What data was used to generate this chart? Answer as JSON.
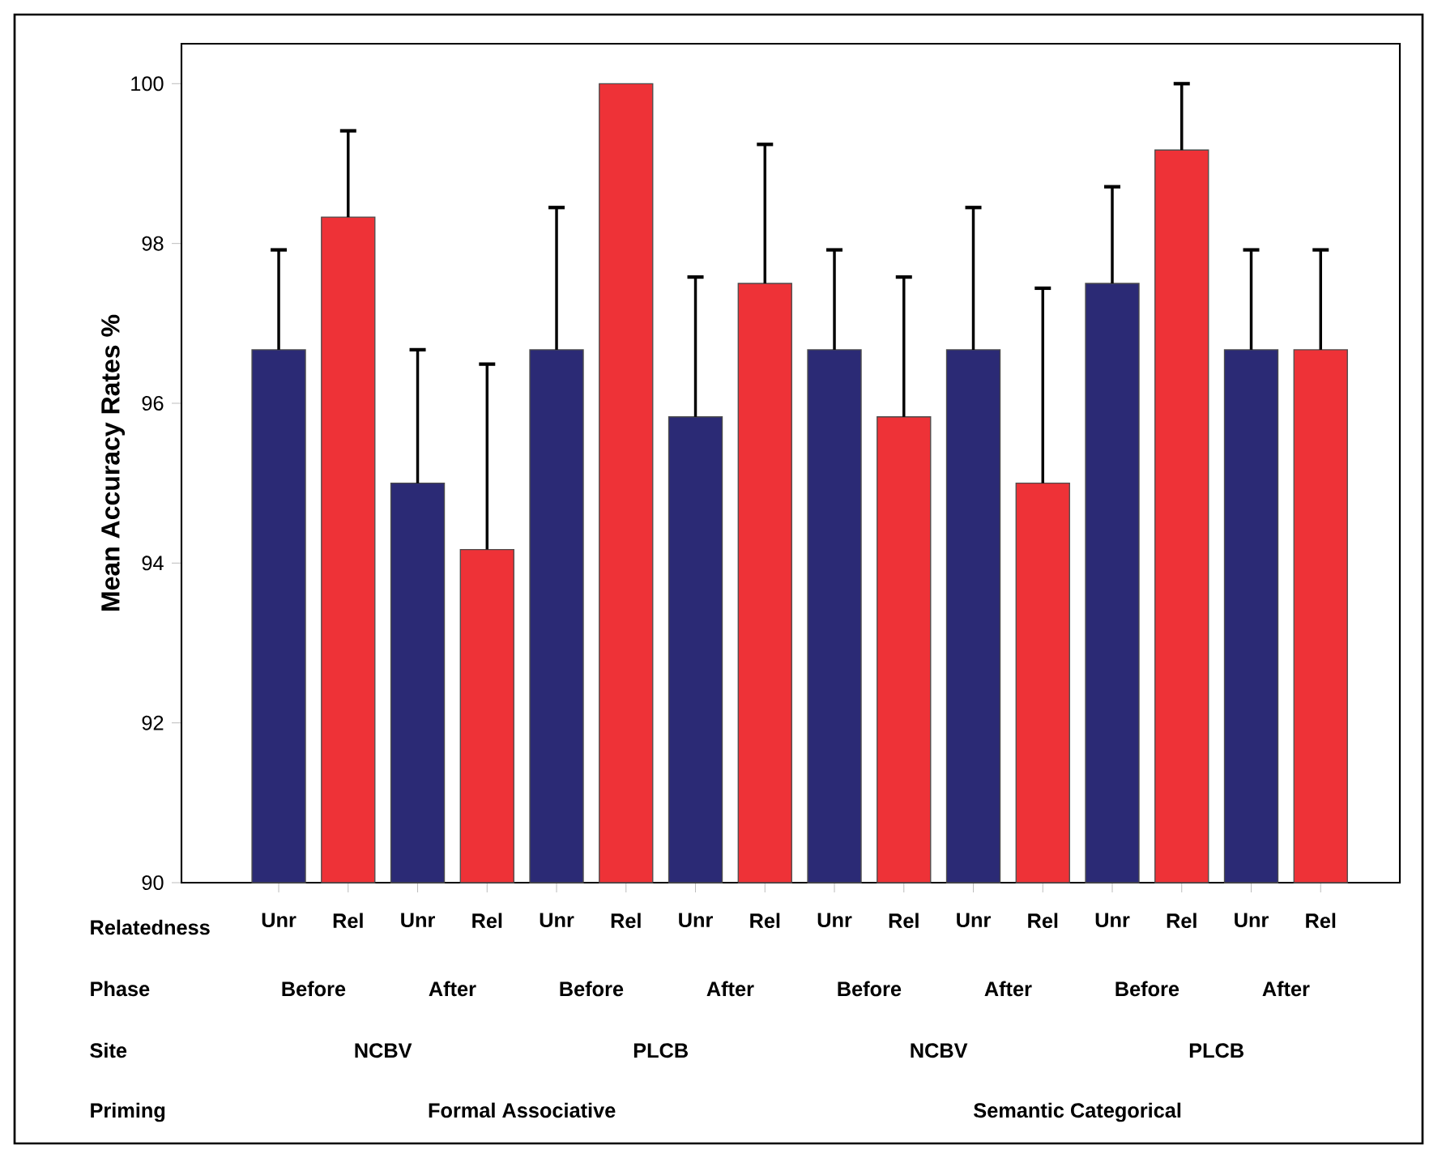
{
  "chart_data": {
    "type": "bar",
    "ylabel": "Mean Accuracy Rates  %",
    "categories": [
      "Unr",
      "Rel",
      "Unr",
      "Rel",
      "Unr",
      "Rel",
      "Unr",
      "Rel",
      "Unr",
      "Rel",
      "Unr",
      "Rel",
      "Unr",
      "Rel",
      "Unr",
      "Rel"
    ],
    "values": [
      96.67,
      98.33,
      95,
      94.17,
      96.67,
      100,
      95.83,
      97.5,
      96.67,
      95.83,
      96.67,
      95,
      97.5,
      99.17,
      96.67,
      96.67
    ],
    "colors": [
      "#2b2a75",
      "#ee3237",
      "#2b2a75",
      "#ee3237",
      "#2b2a75",
      "#ee3237",
      "#2b2a75",
      "#ee3237",
      "#2b2a75",
      "#ee3237",
      "#2b2a75",
      "#ee3237",
      "#2b2a75",
      "#ee3237",
      "#2b2a75",
      "#ee3237"
    ],
    "errors": [
      [
        96.67,
        97.92
      ],
      [
        98.33,
        99.41
      ],
      [
        95,
        96.67
      ],
      [
        94.17,
        96.49
      ],
      [
        96.67,
        98.45
      ],
      null,
      [
        95.83,
        97.58
      ],
      [
        97.5,
        99.24
      ],
      [
        96.67,
        97.92
      ],
      [
        95.83,
        97.58
      ],
      [
        96.67,
        98.45
      ],
      [
        95,
        97.44
      ],
      [
        97.5,
        98.71
      ],
      [
        99.17,
        100
      ],
      [
        96.67,
        97.92
      ],
      [
        96.67,
        97.92
      ]
    ],
    "ylim": [
      90,
      100.5
    ],
    "yticks": [
      90,
      92,
      94,
      96,
      98,
      100
    ],
    "annotations": [
      "Relatedness",
      "Phase",
      "Before",
      "After",
      "Before",
      "After",
      "Before",
      "After",
      "Before",
      "After",
      "Site",
      "NCBV",
      "PLCB",
      "NCBV",
      "PLCB",
      "Priming",
      "Formal Associative",
      "Semantic Categorical"
    ]
  }
}
